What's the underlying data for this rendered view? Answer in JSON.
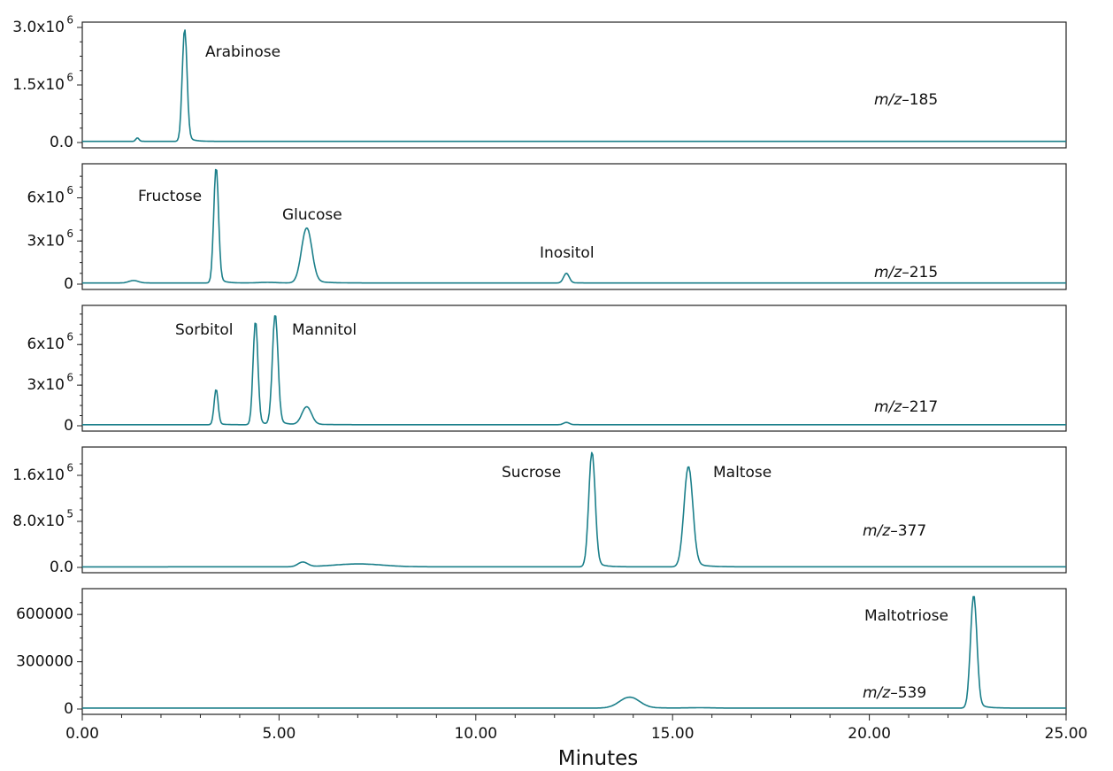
{
  "colors": {
    "trace": "#1b7f8a",
    "axis": "#222222"
  },
  "chart_data": {
    "type": "line",
    "xlabel": "Minutes",
    "xlim": [
      0,
      25
    ],
    "x_ticks": [
      0,
      5,
      10,
      15,
      20,
      25
    ],
    "x_tick_labels": [
      "0.00",
      "5.00",
      "10.00",
      "15.00",
      "20.00",
      "25.00"
    ],
    "grid": false,
    "panels": [
      {
        "ion_label": "m/z–185",
        "ylim": [
          0,
          3000000
        ],
        "y_ticks": [
          0,
          1500000,
          3000000
        ],
        "y_tick_labels": [
          "0.0",
          "1.5x10",
          "3.0x10"
        ],
        "y_tick_exponents": [
          "",
          "6",
          "6"
        ],
        "baseline": 30000,
        "peaks": [
          {
            "x": 1.4,
            "y": 120000,
            "w": 0.04,
            "label": ""
          },
          {
            "x": 2.6,
            "y": 2950000,
            "w": 0.06,
            "label": "Arabinose"
          }
        ]
      },
      {
        "ion_label": "m/z–215",
        "ylim": [
          0,
          8000000
        ],
        "y_ticks": [
          0,
          3000000,
          6000000
        ],
        "y_tick_labels": [
          "0",
          "3x10",
          "6x10"
        ],
        "y_tick_exponents": [
          "",
          "6",
          "6"
        ],
        "baseline": 80000,
        "peaks": [
          {
            "x": 1.3,
            "y": 250000,
            "w": 0.12,
            "label": ""
          },
          {
            "x": 3.4,
            "y": 8100000,
            "w": 0.06,
            "label": "Fructose"
          },
          {
            "x": 4.7,
            "y": 120000,
            "w": 0.25,
            "label": ""
          },
          {
            "x": 5.7,
            "y": 3900000,
            "w": 0.13,
            "label": "Glucose"
          },
          {
            "x": 12.3,
            "y": 750000,
            "w": 0.07,
            "label": "Inositol"
          }
        ]
      },
      {
        "ion_label": "m/z–217",
        "ylim": [
          0,
          8500000
        ],
        "y_ticks": [
          0,
          3000000,
          6000000
        ],
        "y_tick_labels": [
          "0",
          "3x10",
          "6x10"
        ],
        "y_tick_exponents": [
          "",
          "6",
          "6"
        ],
        "baseline": 80000,
        "peaks": [
          {
            "x": 3.4,
            "y": 2700000,
            "w": 0.05,
            "label": ""
          },
          {
            "x": 4.4,
            "y": 7700000,
            "w": 0.06,
            "label": "Sorbitol"
          },
          {
            "x": 4.9,
            "y": 8200000,
            "w": 0.07,
            "label": "Mannitol"
          },
          {
            "x": 5.7,
            "y": 1400000,
            "w": 0.12,
            "label": ""
          },
          {
            "x": 12.3,
            "y": 250000,
            "w": 0.07,
            "label": ""
          }
        ]
      },
      {
        "ion_label": "m/z–377",
        "ylim": [
          0,
          2000000
        ],
        "y_ticks": [
          0,
          800000,
          1600000
        ],
        "y_tick_labels": [
          "0.0",
          "8.0x10",
          "1.6x10"
        ],
        "y_tick_exponents": [
          "",
          "5",
          "6"
        ],
        "baseline": 10000,
        "peaks": [
          {
            "x": 5.6,
            "y": 90000,
            "w": 0.12,
            "label": ""
          },
          {
            "x": 7.0,
            "y": 60000,
            "w": 0.6,
            "label": ""
          },
          {
            "x": 12.95,
            "y": 2000000,
            "w": 0.08,
            "label": "Sucrose"
          },
          {
            "x": 15.4,
            "y": 1750000,
            "w": 0.11,
            "label": "Maltose"
          }
        ]
      },
      {
        "ion_label": "m/z–539",
        "ylim": [
          0,
          730000
        ],
        "y_ticks": [
          0,
          300000,
          600000
        ],
        "y_tick_labels": [
          "0",
          "300000",
          "600000"
        ],
        "y_tick_exponents": [
          "",
          "",
          ""
        ],
        "baseline": 6000,
        "peaks": [
          {
            "x": 13.9,
            "y": 75000,
            "w": 0.25,
            "label": ""
          },
          {
            "x": 15.7,
            "y": 8000,
            "w": 0.3,
            "label": ""
          },
          {
            "x": 22.65,
            "y": 720000,
            "w": 0.08,
            "label": "Maltotriose"
          }
        ]
      }
    ]
  }
}
